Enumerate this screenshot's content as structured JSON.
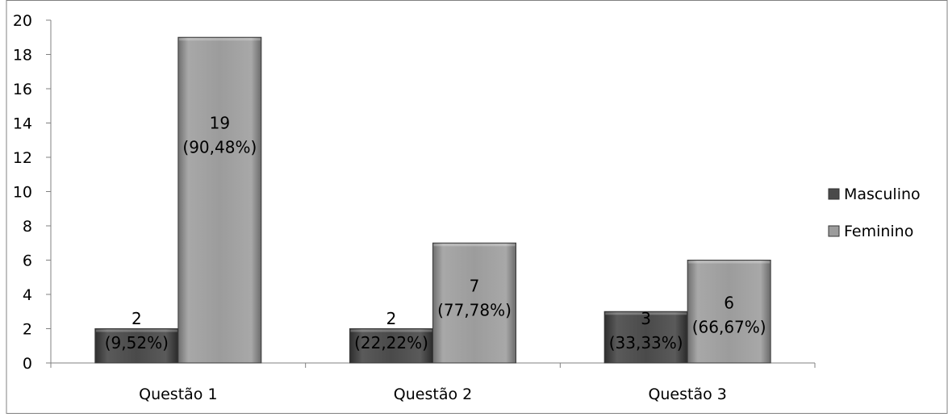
{
  "chart_data": {
    "type": "bar",
    "categories": [
      "Questão 1",
      "Questão 2",
      "Questão 3"
    ],
    "series": [
      {
        "name": "Masculino",
        "values": [
          2,
          2,
          3
        ],
        "labels": [
          "2",
          "2",
          "3"
        ],
        "percent_labels": [
          "(9,52%)",
          "(22,22%)",
          "(33,33%)"
        ]
      },
      {
        "name": "Feminino",
        "values": [
          19,
          7,
          6
        ],
        "labels": [
          "19",
          "7",
          "6"
        ],
        "percent_labels": [
          "(90,48%)",
          "(77,78%)",
          "(66,67%)"
        ]
      }
    ],
    "yticks": [
      "0",
      "2",
      "4",
      "6",
      "8",
      "10",
      "12",
      "14",
      "16",
      "18",
      "20"
    ],
    "ylim": [
      0,
      20
    ],
    "title": "",
    "xlabel": "",
    "ylabel": "",
    "legend_position": "right",
    "grid": false,
    "colors": {
      "Masculino": "#4a4a4a",
      "Feminino": "#9c9c9c",
      "axis": "#808080",
      "border": "#808080"
    }
  }
}
